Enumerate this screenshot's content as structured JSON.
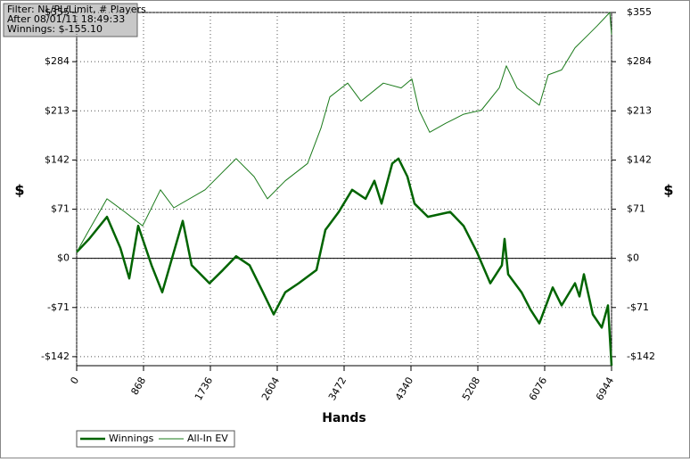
{
  "chart_data": {
    "type": "line",
    "annotations": [
      "Filter: NL/PL/Limit, # Players",
      "After 08/01/11 18:49:33",
      "Winnings: $-155.10"
    ],
    "x_label": "Hands",
    "y_label": "$",
    "xlim": [
      0,
      6944
    ],
    "xticks": [
      0,
      868,
      1736,
      2604,
      3472,
      4340,
      5208,
      6076,
      6944
    ],
    "ylim": [
      -155,
      355
    ],
    "yticks": [
      {
        "value": 355,
        "label": "$355"
      },
      {
        "value": 284,
        "label": "$284"
      },
      {
        "value": 213,
        "label": "$213"
      },
      {
        "value": 142,
        "label": "$142"
      },
      {
        "value": 71,
        "label": "$71"
      },
      {
        "value": 0,
        "label": "$0"
      },
      {
        "value": -71,
        "label": "-$71"
      },
      {
        "value": -142,
        "label": "-$142"
      }
    ],
    "grid": true,
    "legend": "bottom-left",
    "series": [
      {
        "name": "Winnings",
        "color": "#006400",
        "x": [
          0,
          162,
          393,
          567,
          683,
          799,
          972,
          1111,
          1377,
          1493,
          1724,
          1898,
          2071,
          2245,
          2419,
          2558,
          2708,
          2882,
          3113,
          3229,
          3402,
          3576,
          3750,
          3865,
          3958,
          4097,
          4178,
          4294,
          4386,
          4560,
          4849,
          5023,
          5196,
          5370,
          5520,
          5555,
          5601,
          5775,
          5891,
          6006,
          6180,
          6296,
          6469,
          6527,
          6585,
          6701,
          6817,
          6898,
          6944
        ],
        "values": [
          9,
          28,
          60,
          15,
          -29,
          47,
          -10,
          -49,
          54,
          -10,
          -36,
          -17,
          3,
          -10,
          -49,
          -81,
          -49,
          -36,
          -17,
          41,
          67,
          99,
          86,
          112,
          79,
          137,
          144,
          118,
          79,
          60,
          67,
          47,
          9,
          -36,
          -10,
          28,
          -23,
          -49,
          -74,
          -94,
          -42,
          -68,
          -36,
          -55,
          -23,
          -81,
          -100,
          -68,
          -155
        ]
      },
      {
        "name": "All-In EV",
        "color": "#1a7a1a",
        "x": [
          0,
          162,
          393,
          625,
          856,
          1088,
          1261,
          1667,
          2071,
          2303,
          2477,
          2708,
          2998,
          3171,
          3287,
          3518,
          3692,
          3981,
          4213,
          4351,
          4444,
          4583,
          4791,
          5023,
          5254,
          5486,
          5578,
          5717,
          6006,
          6122,
          6296,
          6469,
          6643,
          6759,
          6921,
          6944
        ],
        "values": [
          9,
          41,
          86,
          67,
          47,
          99,
          73,
          99,
          144,
          118,
          86,
          112,
          137,
          188,
          233,
          253,
          227,
          253,
          246,
          259,
          214,
          182,
          195,
          208,
          214,
          246,
          278,
          246,
          221,
          265,
          272,
          304,
          323,
          336,
          355,
          323
        ]
      }
    ]
  }
}
